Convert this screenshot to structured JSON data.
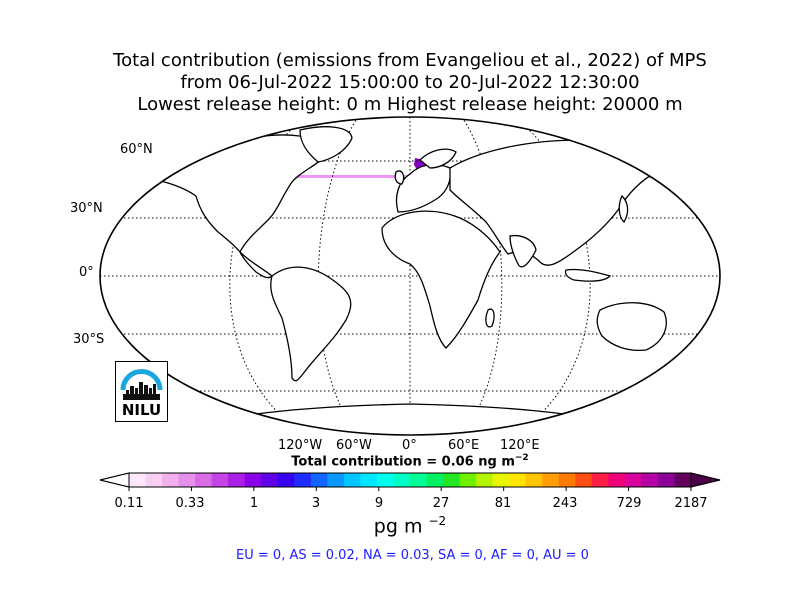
{
  "title": {
    "line1": "Total contribution (emissions from Evangeliou et al., 2022) of MPS",
    "line2": "from 06-Jul-2022 15:00:00 to 20-Jul-2022 12:30:00",
    "line3": "Lowest release height: 0 m       Highest release height: 20000 m"
  },
  "map": {
    "projection": "Robinson",
    "lat_labels": [
      "60°N",
      "30°N",
      "0°",
      "30°S"
    ],
    "lon_labels": [
      "120°W",
      "60°W",
      "0°",
      "60°E",
      "120°E"
    ],
    "total": "Total contribution = 0.06 ng m",
    "total_exp": "−2"
  },
  "colorbar": {
    "ticks": [
      "0.11",
      "0.33",
      "1",
      "3",
      "9",
      "27",
      "81",
      "243",
      "729",
      "2187"
    ],
    "units": "pg m",
    "units_exp": "−2",
    "colors": [
      "#fde8fb",
      "#f8cff4",
      "#f0b1ee",
      "#e690ea",
      "#d86be6",
      "#c445e6",
      "#aa1ee6",
      "#8a00e6",
      "#6200e6",
      "#3a00f0",
      "#1e2cff",
      "#1064ff",
      "#0896ff",
      "#00c4ff",
      "#00e6ff",
      "#00ffee",
      "#00ffc4",
      "#00ff94",
      "#00f064",
      "#22e622",
      "#6ef000",
      "#b4f500",
      "#e6f500",
      "#ffe600",
      "#ffc400",
      "#ff9e00",
      "#ff7800",
      "#ff4e14",
      "#ff1e46",
      "#f00078",
      "#d8009e",
      "#b400a4",
      "#8c0096",
      "#64005c"
    ],
    "over_color": "#4a0048",
    "under_color": "#ffffff"
  },
  "regions": "EU = 0,  AS = 0.02,  NA = 0.03,  SA = 0,  AF = 0,  AU = 0",
  "logo": {
    "text": "NILU"
  }
}
